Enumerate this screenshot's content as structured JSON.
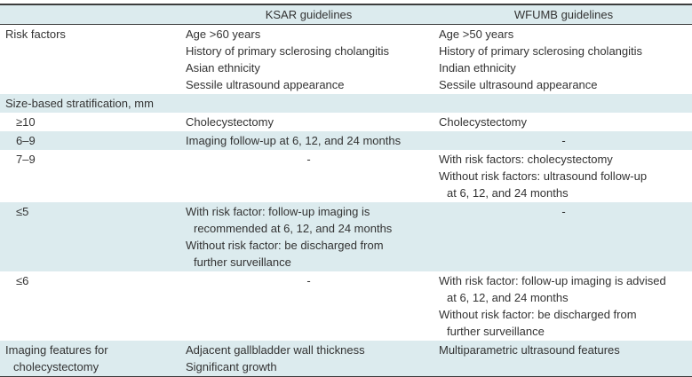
{
  "table": {
    "accent_color": "#dcebee",
    "border_color": "#3d3d3d",
    "text_color": "#333333",
    "header": {
      "cells": [
        "",
        "KSAR guidelines",
        "WFUMB guidelines"
      ]
    },
    "rows": [
      {
        "shaded": false,
        "label": {
          "indent": false,
          "lines": [
            {
              "text": "Risk factors"
            }
          ]
        },
        "ksar": {
          "align": "left",
          "lines": [
            {
              "text": "Age >60 years"
            },
            {
              "text": "History of primary sclerosing cholangitis"
            },
            {
              "text": "Asian ethnicity"
            },
            {
              "text": "Sessile ultrasound appearance"
            }
          ]
        },
        "wfumb": {
          "align": "left",
          "lines": [
            {
              "text": "Age >50 years"
            },
            {
              "text": "History of primary sclerosing cholangitis"
            },
            {
              "text": "Indian ethnicity"
            },
            {
              "text": "Sessile ultrasound appearance"
            }
          ]
        }
      },
      {
        "shaded": true,
        "label": {
          "indent": false,
          "lines": [
            {
              "text": "Size-based stratification, mm"
            }
          ]
        },
        "ksar": {
          "align": "left",
          "lines": []
        },
        "wfumb": {
          "align": "left",
          "lines": []
        }
      },
      {
        "shaded": false,
        "label": {
          "indent": true,
          "lines": [
            {
              "text": "≥10"
            }
          ]
        },
        "ksar": {
          "align": "left",
          "lines": [
            {
              "text": "Cholecystectomy"
            }
          ]
        },
        "wfumb": {
          "align": "left",
          "lines": [
            {
              "text": "Cholecystectomy"
            }
          ]
        }
      },
      {
        "shaded": true,
        "label": {
          "indent": true,
          "lines": [
            {
              "text": "6–9"
            }
          ]
        },
        "ksar": {
          "align": "left",
          "lines": [
            {
              "text": "Imaging follow-up at 6, 12, and 24 months"
            }
          ]
        },
        "wfumb": {
          "align": "center",
          "lines": [
            {
              "text": "-"
            }
          ]
        }
      },
      {
        "shaded": false,
        "label": {
          "indent": true,
          "lines": [
            {
              "text": "7–9"
            }
          ]
        },
        "ksar": {
          "align": "center",
          "lines": [
            {
              "text": "-"
            }
          ]
        },
        "wfumb": {
          "align": "left",
          "lines": [
            {
              "text": "With risk factors: cholecystectomy"
            },
            {
              "text": "Without risk factors: ultrasound follow-up"
            },
            {
              "text": "at 6, 12, and 24 months",
              "indent": true
            }
          ]
        }
      },
      {
        "shaded": true,
        "label": {
          "indent": true,
          "lines": [
            {
              "text": "≤5"
            }
          ]
        },
        "ksar": {
          "align": "left",
          "lines": [
            {
              "text": "With risk factor: follow-up imaging is"
            },
            {
              "text": "recommended at 6, 12, and 24 months",
              "indent": true
            },
            {
              "text": "Without risk factor: be discharged from"
            },
            {
              "text": "further surveillance",
              "indent": true
            }
          ]
        },
        "wfumb": {
          "align": "center",
          "lines": [
            {
              "text": "-"
            }
          ]
        }
      },
      {
        "shaded": false,
        "label": {
          "indent": true,
          "lines": [
            {
              "text": "≤6"
            }
          ]
        },
        "ksar": {
          "align": "center",
          "lines": [
            {
              "text": "-"
            }
          ]
        },
        "wfumb": {
          "align": "left",
          "lines": [
            {
              "text": "With risk factor: follow-up imaging is advised"
            },
            {
              "text": "at 6, 12, and 24 months",
              "indent": true
            },
            {
              "text": "Without risk factor: be discharged from"
            },
            {
              "text": "further surveillance",
              "indent": true
            }
          ]
        }
      },
      {
        "shaded": true,
        "label": {
          "indent": false,
          "lines": [
            {
              "text": "Imaging features for"
            },
            {
              "text": "cholecystectomy",
              "indent": true
            }
          ]
        },
        "ksar": {
          "align": "left",
          "lines": [
            {
              "text": "Adjacent gallbladder wall thickness"
            },
            {
              "text": "Significant growth"
            }
          ]
        },
        "wfumb": {
          "align": "left",
          "lines": [
            {
              "text": "Multiparametric ultrasound features"
            }
          ]
        }
      }
    ]
  }
}
